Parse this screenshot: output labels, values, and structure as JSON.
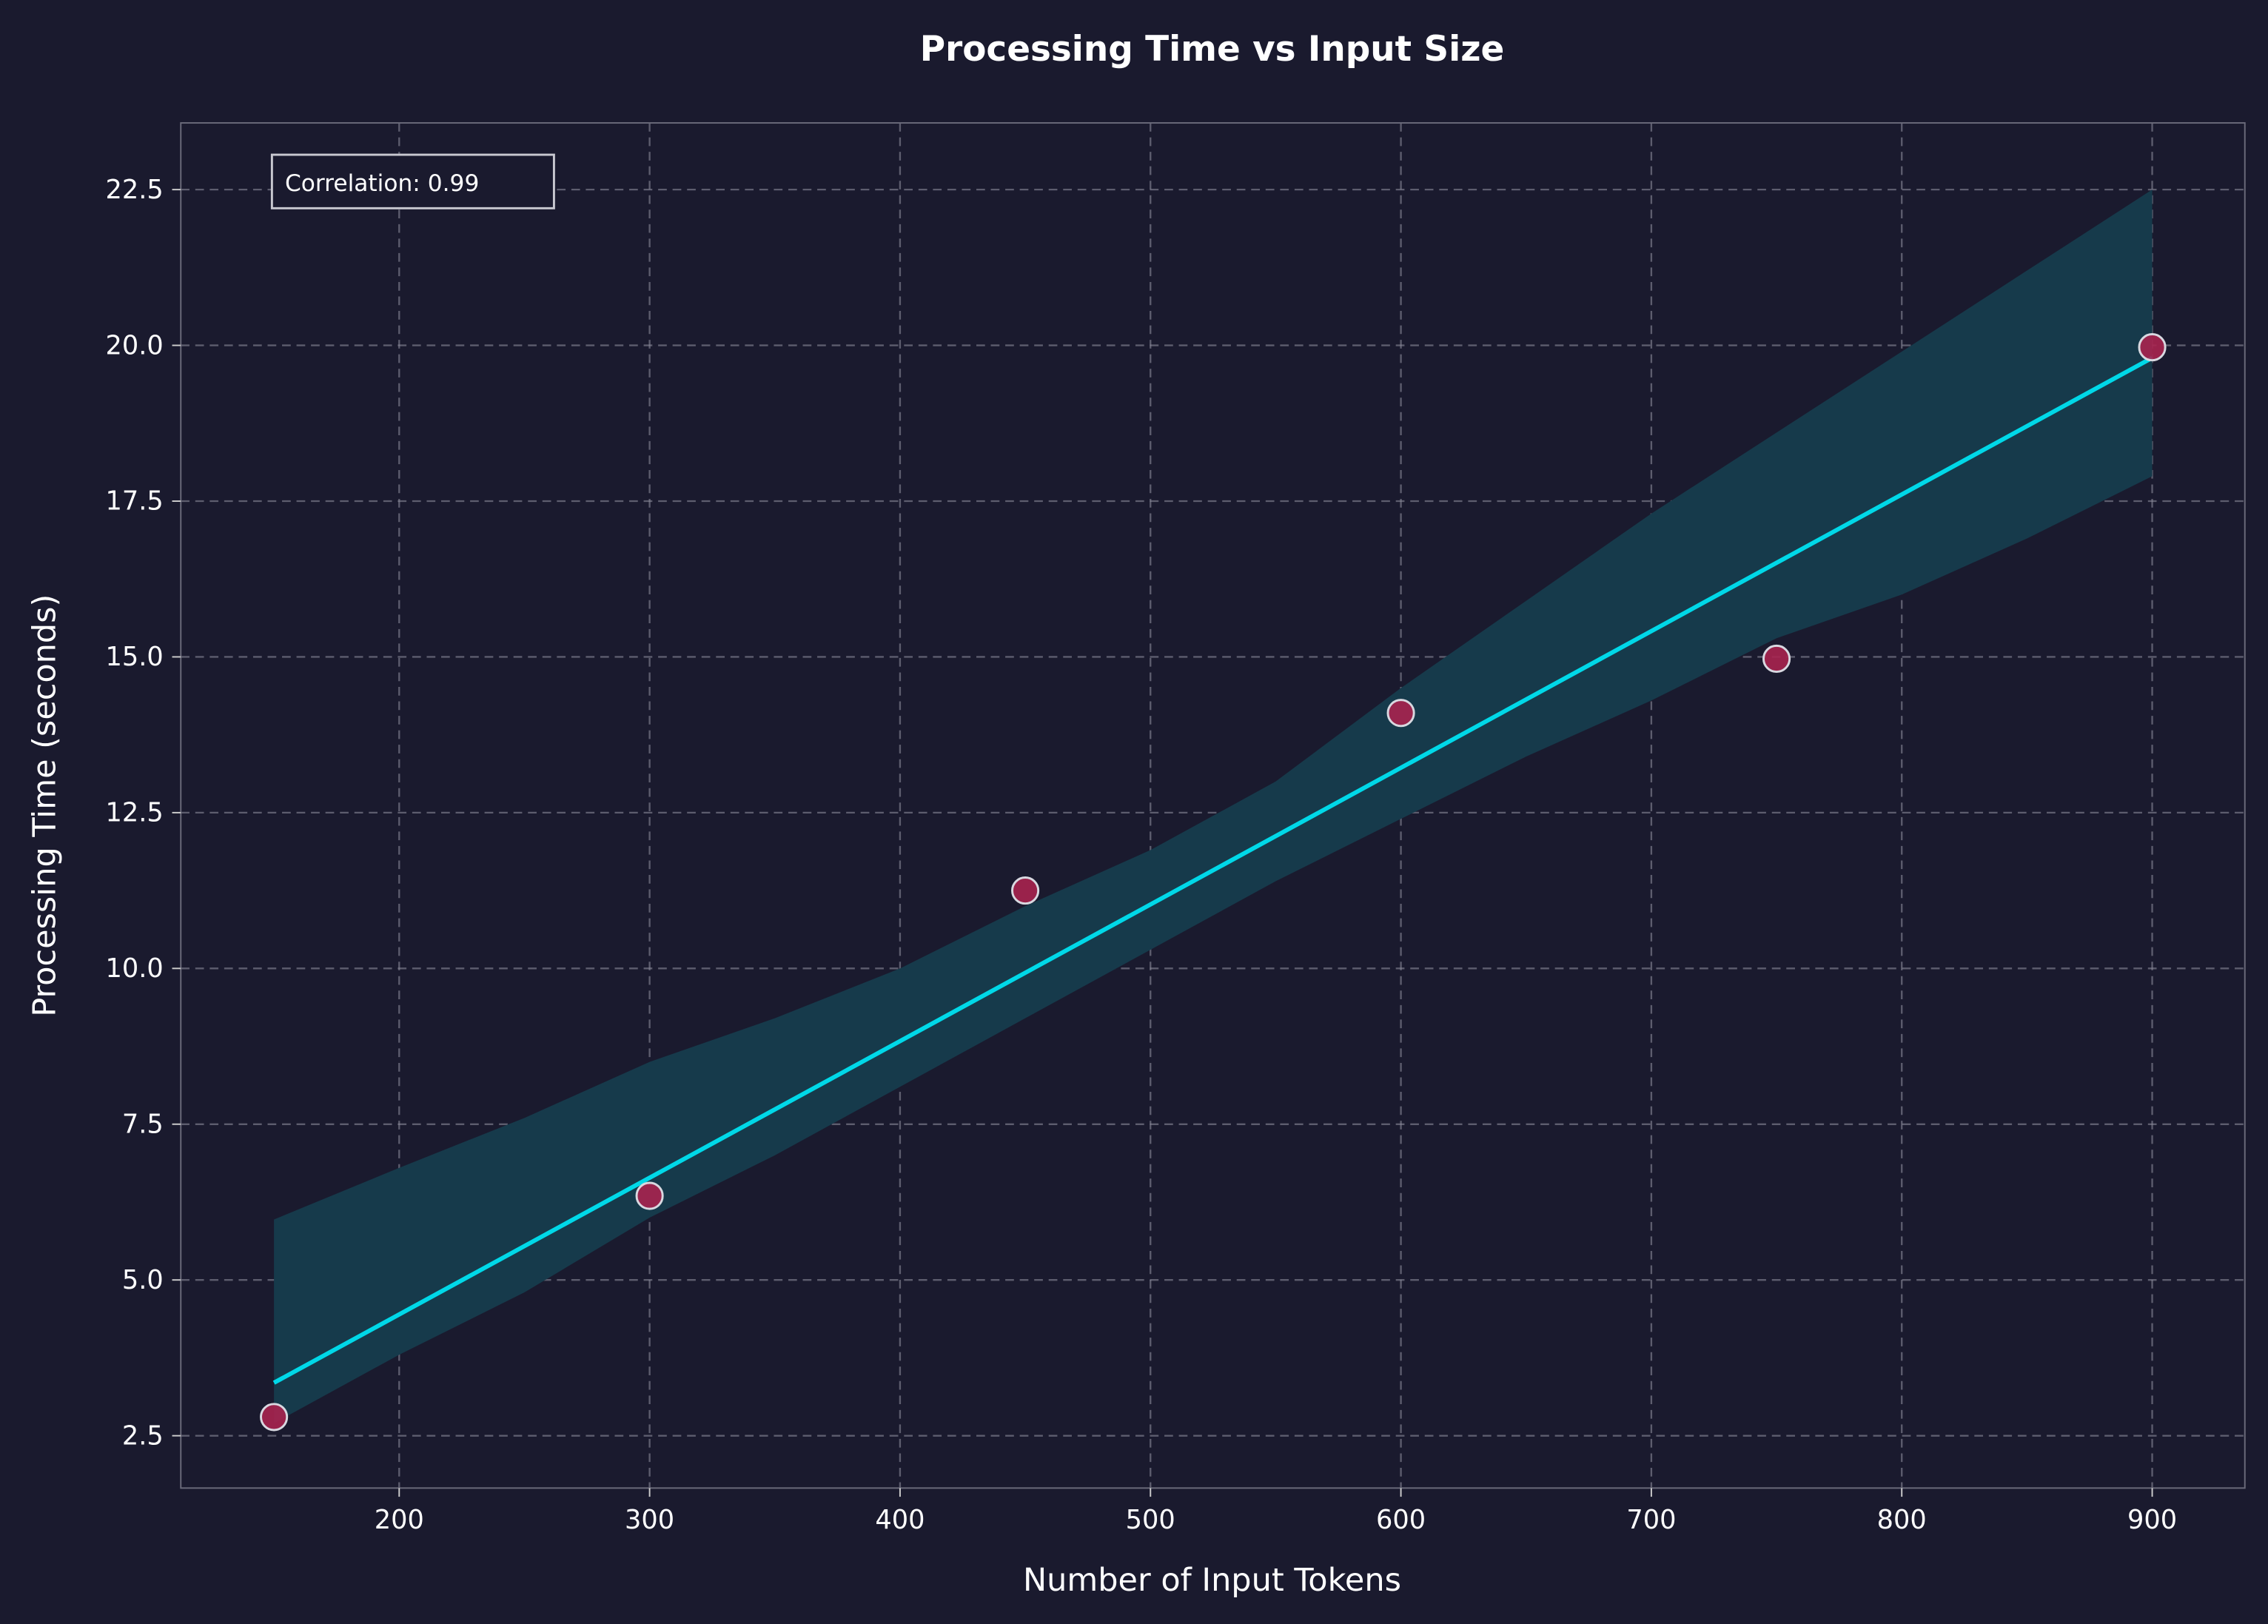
{
  "chart_data": {
    "type": "scatter",
    "title": "Processing Time vs Input Size",
    "xlabel": "Number of Input Tokens",
    "ylabel": "Processing Time (seconds)",
    "xlim": [
      112.8,
      937
    ],
    "ylim": [
      1.66,
      23.57
    ],
    "xticks": [
      200,
      300,
      400,
      500,
      600,
      700,
      800,
      900
    ],
    "yticks": [
      2.5,
      5.0,
      7.5,
      10.0,
      12.5,
      15.0,
      17.5,
      20.0,
      22.5
    ],
    "grid": true,
    "points": {
      "x": [
        150,
        300,
        450,
        600,
        750,
        900
      ],
      "y": [
        2.8,
        6.35,
        11.25,
        14.1,
        14.97,
        19.97
      ]
    },
    "regression_line": {
      "x": [
        150,
        900
      ],
      "y": [
        3.35,
        19.8
      ]
    },
    "confidence_band": {
      "x": [
        150,
        200,
        250,
        300,
        350,
        400,
        450,
        500,
        550,
        600,
        650,
        700,
        750,
        800,
        850,
        900
      ],
      "upper": [
        5.97,
        6.8,
        7.6,
        8.5,
        9.2,
        10.0,
        11.0,
        11.9,
        13.0,
        14.5,
        15.9,
        17.3,
        18.6,
        19.9,
        21.2,
        22.5
      ],
      "lower": [
        2.7,
        3.8,
        4.8,
        6.0,
        7.0,
        8.1,
        9.2,
        10.3,
        11.4,
        12.4,
        13.4,
        14.3,
        15.3,
        16.0,
        16.9,
        17.9
      ]
    },
    "annotation": "Correlation: 0.99",
    "colors": {
      "background": "#1a1a2e",
      "points": "#a8234f",
      "point_edge": "#d8d8e0",
      "line": "#00d8e8",
      "band": "#163a4b",
      "text": "#ffffff"
    }
  }
}
